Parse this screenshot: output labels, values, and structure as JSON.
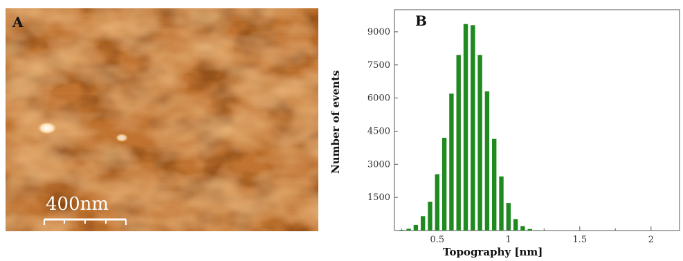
{
  "panel_a": {
    "letter": "A",
    "scale_bar_label": "400nm"
  },
  "panel_b": {
    "letter": "B"
  },
  "colors": {
    "afm_base": "#c27634",
    "afm_dark": "#7a3a10",
    "afm_light": "#f3c285",
    "bar": "#1f8a1f"
  },
  "chart_data": {
    "type": "bar",
    "title": "",
    "xlabel": "Topography [nm]",
    "ylabel": "Number of events",
    "xlim": [
      0.2,
      2.2
    ],
    "ylim": [
      0,
      10000
    ],
    "x_ticks": [
      "0.5",
      "1",
      "1.5",
      "2"
    ],
    "y_ticks": [
      "1500",
      "3000",
      "4500",
      "6000",
      "7500",
      "9000"
    ],
    "grid": false,
    "x": [
      0.25,
      0.3,
      0.35,
      0.4,
      0.45,
      0.5,
      0.55,
      0.6,
      0.65,
      0.7,
      0.75,
      0.8,
      0.85,
      0.9,
      0.95,
      1.0,
      1.05,
      1.1,
      1.15,
      1.2,
      1.25,
      1.3,
      1.35,
      1.4,
      1.45,
      1.5,
      1.55
    ],
    "values": [
      30,
      80,
      250,
      650,
      1300,
      2550,
      4200,
      6200,
      7950,
      9350,
      9300,
      7950,
      6300,
      4150,
      2450,
      1250,
      520,
      200,
      70,
      20,
      5,
      0,
      0,
      0,
      0,
      0,
      0
    ]
  }
}
